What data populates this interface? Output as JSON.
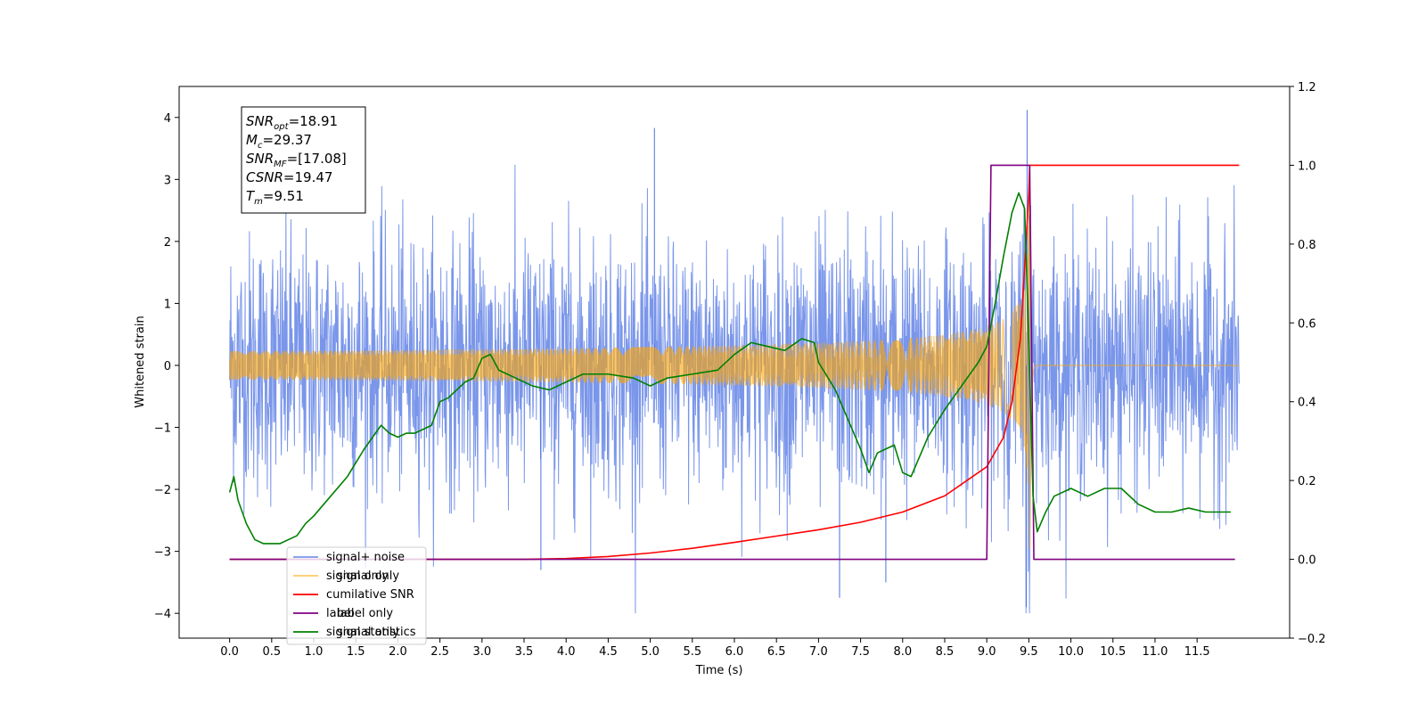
{
  "chart_data": {
    "type": "line",
    "xlabel": "Time (s)",
    "ylabel": "Whitened strain",
    "xlim": [
      -0.6,
      12.6
    ],
    "ylim": [
      -4.4,
      4.5
    ],
    "y2lim": [
      -0.2,
      1.2
    ],
    "x_ticks": [
      "0.0",
      "0.5",
      "1.0",
      "1.5",
      "2.0",
      "2.5",
      "3.0",
      "3.5",
      "4.0",
      "4.5",
      "5.0",
      "5.5",
      "6.0",
      "6.5",
      "7.0",
      "7.5",
      "8.0",
      "8.5",
      "9.0",
      "9.5",
      "10.0",
      "10.5",
      "11.0",
      "11.5"
    ],
    "y_ticks": [
      "4",
      "3",
      "2",
      "1",
      "0",
      "−1",
      "−2",
      "−3",
      "−4"
    ],
    "y2_ticks": [
      "1.2",
      "1.0",
      "0.8",
      "0.6",
      "0.4",
      "0.2",
      "0.0",
      "−0.2"
    ],
    "annotation": {
      "lines": [
        {
          "sym": "SNR",
          "sub": "opt",
          "val": "=18.91"
        },
        {
          "sym": "M",
          "sub": "c",
          "val": "=29.37"
        },
        {
          "sym": "SNR",
          "sub": "MF",
          "val": "=[17.08]"
        },
        {
          "sym": "CSNR",
          "sub": "",
          "val": "=19.47"
        },
        {
          "sym": "T",
          "sub": "m",
          "val": "=9.51"
        }
      ]
    },
    "legend": {
      "placement": "lower-left",
      "entries": [
        {
          "label": "signal+ noise",
          "color": "#4169E1"
        },
        {
          "label": "signal only",
          "color": "#FFA500"
        },
        {
          "label": "cumilative SNR",
          "color": "#FF0000"
        },
        {
          "label": "label",
          "color": "#800080"
        },
        {
          "label": "signal statistics",
          "color": "#008000"
        }
      ],
      "overlapped_text": [
        {
          "text": "label only",
          "color": "#aaaaaa"
        },
        {
          "text": "signal only",
          "color": "#aaaaaa"
        },
        {
          "text": "signal only",
          "color": "#aaaaaa"
        }
      ]
    },
    "series": [
      {
        "name": "signal+ noise",
        "axis": "left",
        "color": "#4169E1",
        "description_sigma": 1.0,
        "x_range": [
          0.0,
          12.0
        ],
        "notable_peaks": [
          [
            5.05,
            3.83
          ],
          [
            9.48,
            4.12
          ],
          [
            3.7,
            -3.3
          ],
          [
            7.25,
            -3.75
          ],
          [
            7.8,
            -3.5
          ],
          [
            9.47,
            -3.9
          ]
        ]
      },
      {
        "name": "signal only",
        "axis": "left",
        "color": "#FFA500",
        "chirp_merger_time": 9.51,
        "peak_amplitude": 3.5,
        "x_range": [
          0.0,
          12.0
        ]
      },
      {
        "name": "cumilative SNR",
        "axis": "right",
        "color": "#FF0000",
        "x": [
          0.0,
          3.5,
          4.0,
          4.5,
          5.0,
          5.5,
          6.0,
          6.5,
          7.0,
          7.5,
          8.0,
          8.5,
          9.0,
          9.2,
          9.3,
          9.4,
          9.45,
          9.5,
          9.51,
          12.0
        ],
        "y": [
          0.0,
          0.0,
          0.002,
          0.007,
          0.016,
          0.028,
          0.043,
          0.059,
          0.075,
          0.094,
          0.12,
          0.161,
          0.235,
          0.31,
          0.4,
          0.56,
          0.74,
          0.93,
          1.0,
          1.0
        ]
      },
      {
        "name": "label",
        "axis": "right",
        "color": "#800080",
        "x": [
          0.0,
          9.0,
          9.05,
          9.51,
          9.56,
          11.95
        ],
        "y": [
          0.0,
          0.0,
          1.0,
          1.0,
          0.0,
          0.0
        ]
      },
      {
        "name": "signal statistics",
        "axis": "right",
        "color": "#008000",
        "x": [
          0.0,
          0.05,
          0.1,
          0.2,
          0.3,
          0.4,
          0.5,
          0.6,
          0.7,
          0.8,
          0.9,
          1.0,
          1.2,
          1.4,
          1.6,
          1.7,
          1.8,
          1.9,
          2.0,
          2.1,
          2.2,
          2.4,
          2.5,
          2.6,
          2.7,
          2.8,
          2.9,
          3.0,
          3.1,
          3.2,
          3.4,
          3.6,
          3.8,
          4.0,
          4.2,
          4.5,
          4.8,
          5.0,
          5.2,
          5.5,
          5.8,
          6.0,
          6.2,
          6.4,
          6.6,
          6.8,
          6.95,
          7.0,
          7.2,
          7.4,
          7.5,
          7.6,
          7.7,
          7.8,
          7.9,
          8.0,
          8.1,
          8.3,
          8.5,
          8.7,
          8.9,
          9.0,
          9.1,
          9.2,
          9.3,
          9.38,
          9.45,
          9.5,
          9.55,
          9.6,
          9.7,
          9.8,
          10.0,
          10.2,
          10.4,
          10.6,
          10.8,
          11.0,
          11.2,
          11.4,
          11.6,
          11.8,
          11.9
        ],
        "y": [
          0.17,
          0.21,
          0.15,
          0.09,
          0.05,
          0.04,
          0.04,
          0.04,
          0.05,
          0.06,
          0.09,
          0.11,
          0.16,
          0.21,
          0.28,
          0.31,
          0.34,
          0.32,
          0.31,
          0.32,
          0.32,
          0.34,
          0.4,
          0.41,
          0.43,
          0.45,
          0.46,
          0.51,
          0.52,
          0.48,
          0.46,
          0.44,
          0.43,
          0.45,
          0.47,
          0.47,
          0.46,
          0.44,
          0.46,
          0.47,
          0.48,
          0.52,
          0.55,
          0.54,
          0.53,
          0.56,
          0.55,
          0.5,
          0.43,
          0.33,
          0.28,
          0.22,
          0.27,
          0.28,
          0.29,
          0.22,
          0.21,
          0.31,
          0.38,
          0.44,
          0.5,
          0.54,
          0.65,
          0.77,
          0.88,
          0.93,
          0.89,
          0.55,
          0.16,
          0.07,
          0.12,
          0.16,
          0.18,
          0.16,
          0.18,
          0.18,
          0.14,
          0.12,
          0.12,
          0.13,
          0.12,
          0.12,
          0.12
        ]
      }
    ]
  }
}
